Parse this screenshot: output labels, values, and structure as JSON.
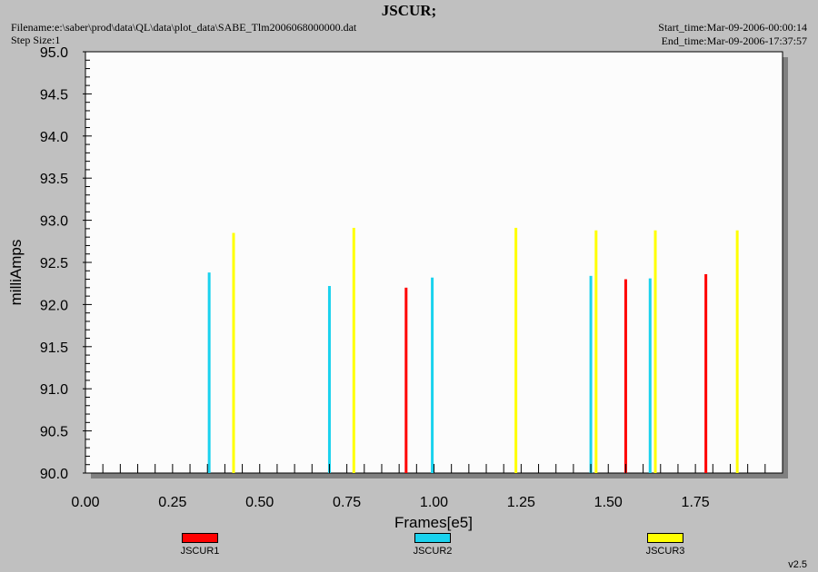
{
  "header": {
    "title": "JSCUR;",
    "filename": "Filename:e:\\saber\\prod\\data\\QL\\data\\plot_data\\SABE_Tlm2006068000000.dat",
    "step_size": "Step Size:1",
    "start_time": "Start_time:Mar-09-2006-00:00:14",
    "end_time": "End_time:Mar-09-2006-17:37:57"
  },
  "version": "v2.5",
  "colors": {
    "background": "#c0c0c0",
    "plot_area": "#fcfcfc",
    "shadow": "#808080"
  },
  "chart_data": {
    "type": "bar",
    "xlabel": "Frames[e5]",
    "ylabel": "milliAmps",
    "xlim": [
      0.0,
      2.0
    ],
    "ylim": [
      90.0,
      95.0
    ],
    "xticks": [
      "0.00",
      "0.25",
      "0.50",
      "0.75",
      "1.00",
      "1.25",
      "1.50",
      "1.75"
    ],
    "yticks": [
      "90.0",
      "90.5",
      "91.0",
      "91.5",
      "92.0",
      "92.5",
      "93.0",
      "93.5",
      "94.0",
      "94.5",
      "95.0"
    ],
    "grid": false,
    "legend_position": "bottom",
    "series": [
      {
        "name": "JSCUR1",
        "color": "#ff0000",
        "points": [
          {
            "x": 0.92,
            "y": 92.2
          },
          {
            "x": 1.55,
            "y": 92.3
          },
          {
            "x": 1.78,
            "y": 92.36
          }
        ]
      },
      {
        "name": "JSCUR2",
        "color": "#1ad2ee",
        "points": [
          {
            "x": 0.355,
            "y": 92.38
          },
          {
            "x": 0.7,
            "y": 92.22
          },
          {
            "x": 0.995,
            "y": 92.32
          },
          {
            "x": 1.45,
            "y": 92.34
          },
          {
            "x": 1.62,
            "y": 92.31
          }
        ]
      },
      {
        "name": "JSCUR3",
        "color": "#ffff00",
        "points": [
          {
            "x": 0.425,
            "y": 92.85
          },
          {
            "x": 0.77,
            "y": 92.91
          },
          {
            "x": 1.235,
            "y": 92.91
          },
          {
            "x": 1.465,
            "y": 92.88
          },
          {
            "x": 1.635,
            "y": 92.88
          },
          {
            "x": 1.87,
            "y": 92.88
          }
        ]
      }
    ]
  }
}
